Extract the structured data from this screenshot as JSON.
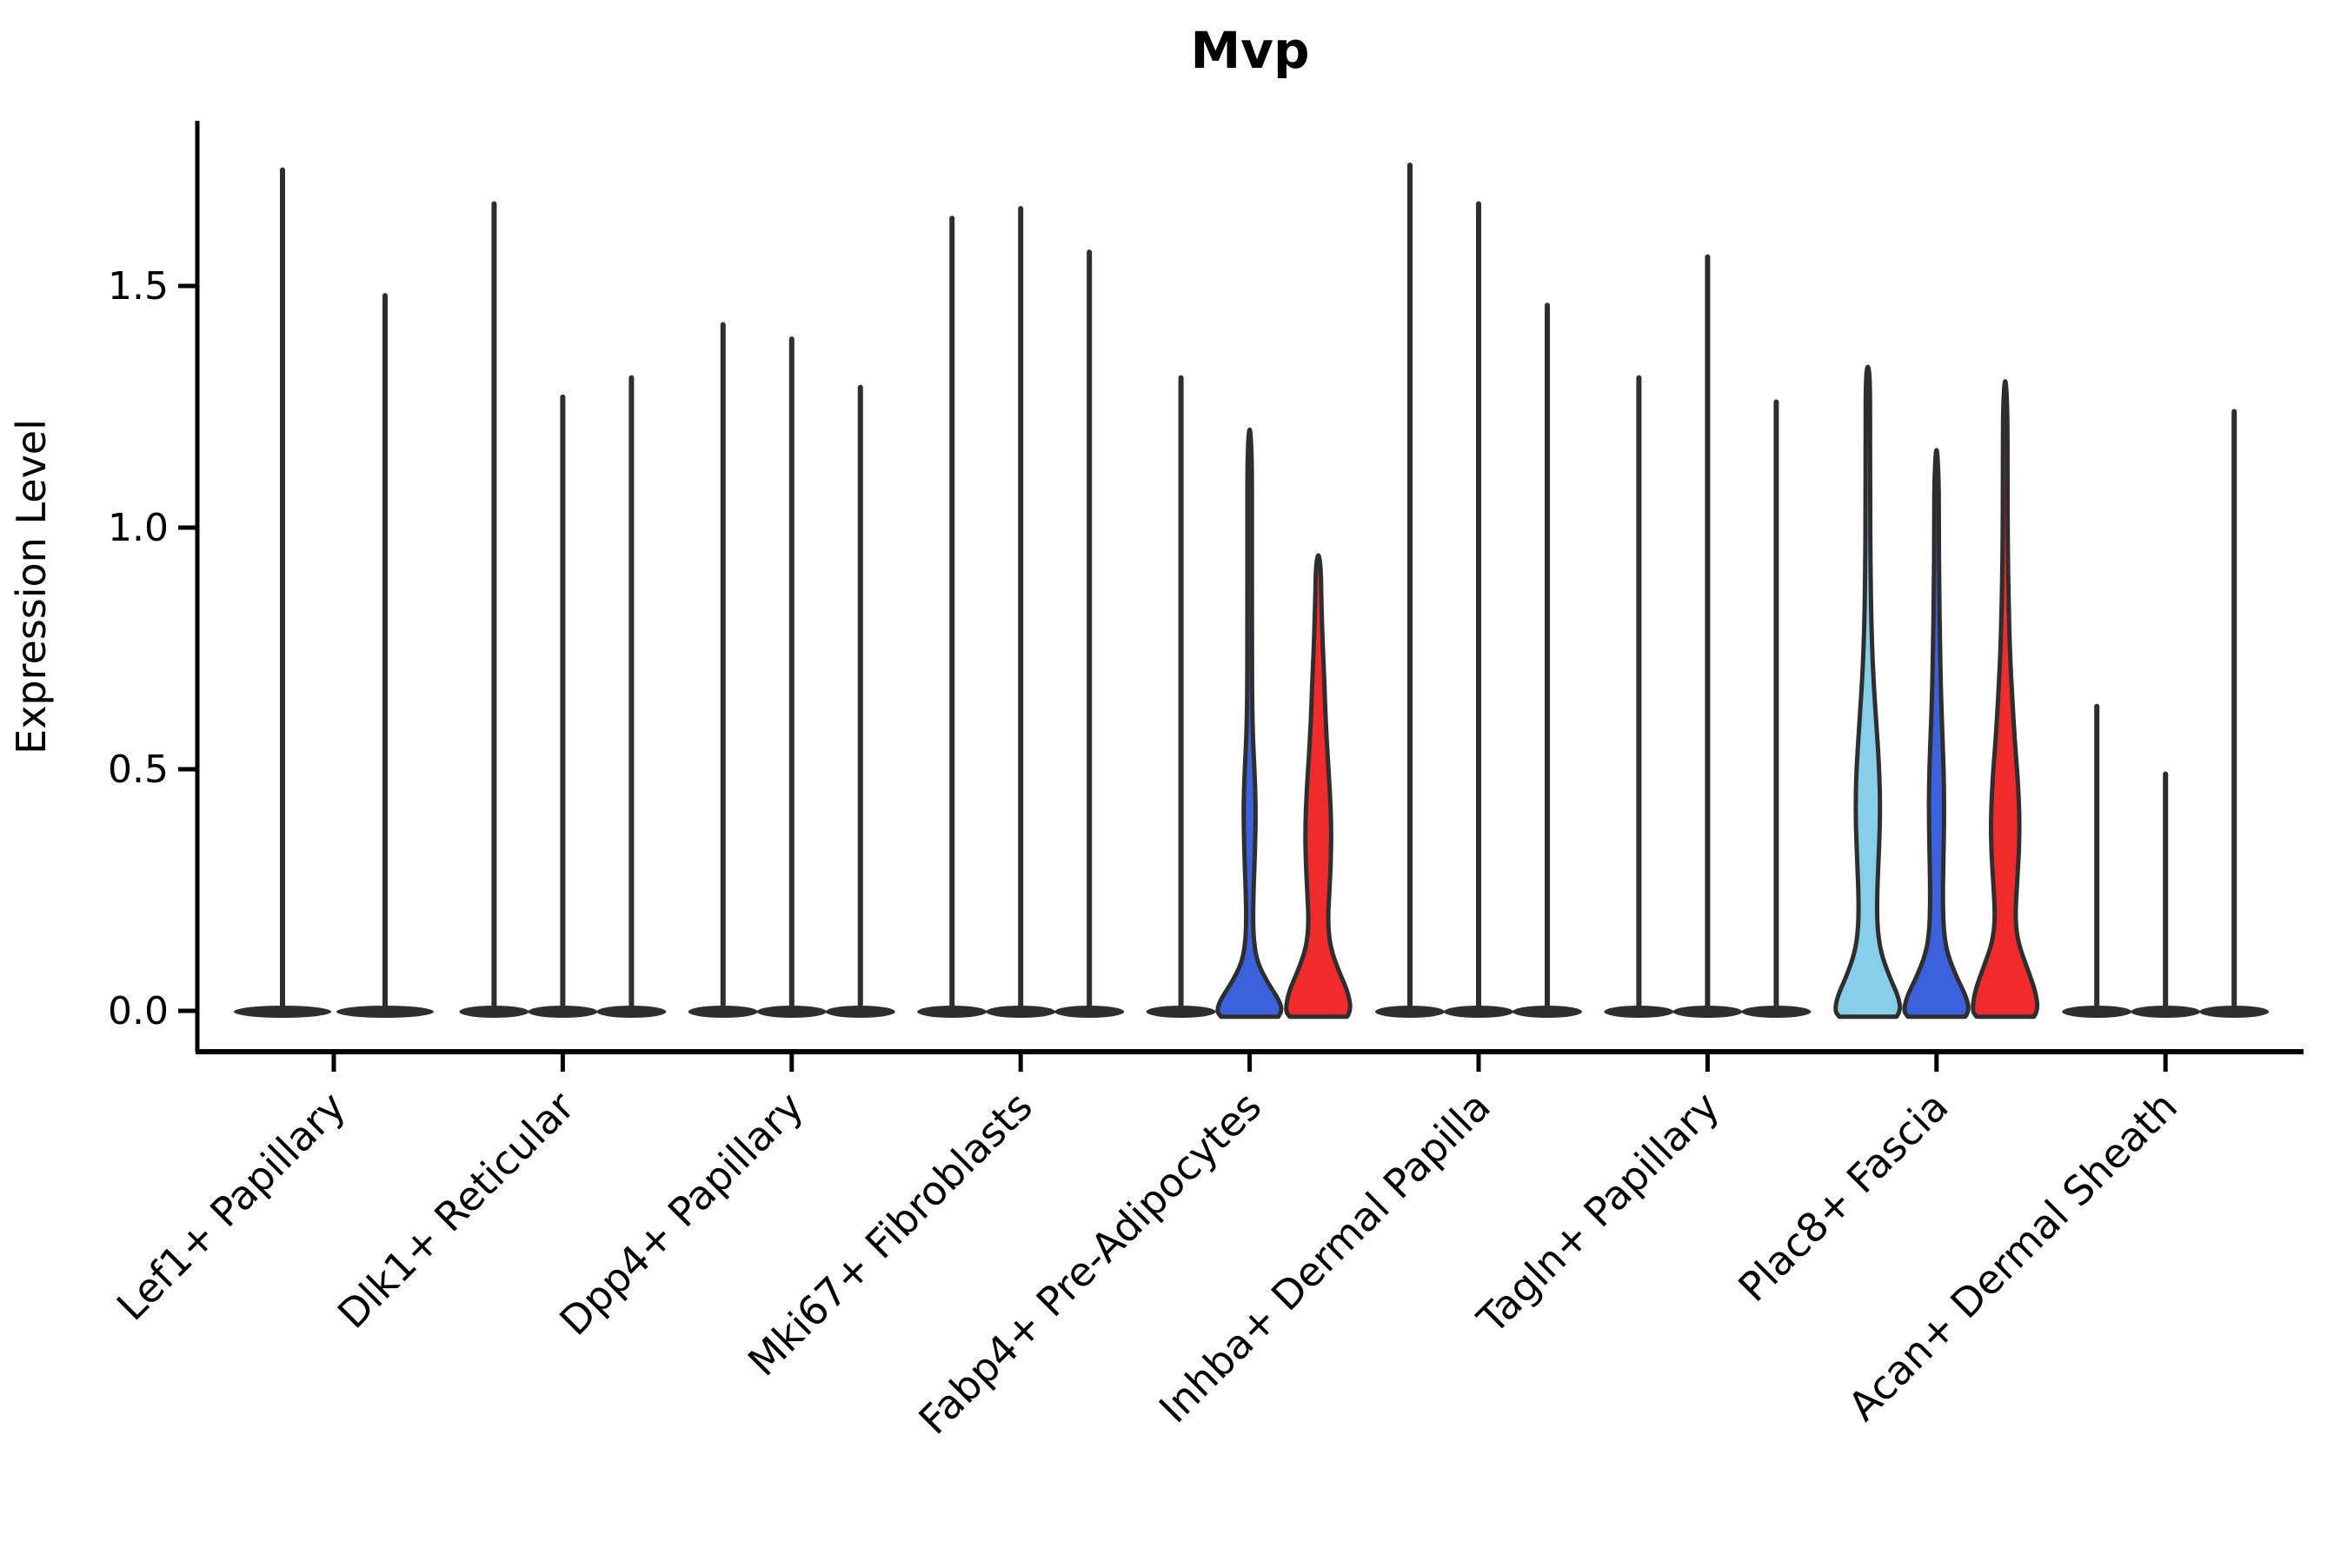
{
  "chart_data": {
    "type": "violin",
    "title": "Mvp",
    "xlabel": "",
    "ylabel": "Expression Level",
    "yticks": [
      0.0,
      0.5,
      1.0,
      1.5
    ],
    "ytick_labels": [
      "0.0",
      "0.5",
      "1.0",
      "1.5"
    ],
    "ylim": [
      -0.085,
      1.84
    ],
    "grid": false,
    "legend_position": "none",
    "palette": {
      "hue1_lightblue": "#87CEEB",
      "hue2_blue": "#3B62DC",
      "hue3_red": "#F12B2B",
      "violin_outline": "#2e2e2e",
      "axis_color": "#000000"
    },
    "categories": [
      "Lef1+ Papillary",
      "Dlk1+ Reticular",
      "Dpp4+ Papillary",
      "Mki67+ Fibroblasts",
      "Fabp4+ Pre-Adipocytes",
      "Inhba+ Dermal Papilla",
      "Tagln+ Papillary",
      "Plac8+ Fascia",
      "Acan+ Dermal Sheath"
    ],
    "groups": [
      {
        "category": "Lef1+ Papillary",
        "offsets": [
          -59,
          59
        ],
        "violins": [
          {
            "max": 1.74,
            "profile": null,
            "color": null
          },
          {
            "max": 1.48,
            "profile": null,
            "color": null
          }
        ]
      },
      {
        "category": "Dlk1+ Reticular",
        "offsets": [
          -79,
          0,
          79
        ],
        "violins": [
          {
            "max": 1.67,
            "profile": null,
            "color": null
          },
          {
            "max": 1.27,
            "profile": null,
            "color": null
          },
          {
            "max": 1.31,
            "profile": null,
            "color": null
          }
        ]
      },
      {
        "category": "Dpp4+ Papillary",
        "offsets": [
          -79,
          0,
          79
        ],
        "violins": [
          {
            "max": 1.42,
            "profile": null,
            "color": null
          },
          {
            "max": 1.39,
            "profile": null,
            "color": null
          },
          {
            "max": 1.29,
            "profile": null,
            "color": null
          }
        ]
      },
      {
        "category": "Mki67+ Fibroblasts",
        "offsets": [
          -79,
          0,
          79
        ],
        "violins": [
          {
            "max": 1.64,
            "profile": null,
            "color": null
          },
          {
            "max": 1.66,
            "profile": null,
            "color": null
          },
          {
            "max": 1.57,
            "profile": null,
            "color": null
          }
        ]
      },
      {
        "category": "Fabp4+ Pre-Adipocytes",
        "offsets": [
          -79,
          0,
          79
        ],
        "violins": [
          {
            "max": 1.31,
            "profile": null,
            "color": null
          },
          {
            "max": 1.22,
            "profile": "fabp4_blue",
            "color": "#3B62DC"
          },
          {
            "max": 0.95,
            "profile": "fabp4_red",
            "color": "#F12B2B"
          }
        ]
      },
      {
        "category": "Inhba+ Dermal Papilla",
        "offsets": [
          -79,
          0,
          79
        ],
        "violins": [
          {
            "max": 1.75,
            "profile": null,
            "color": null
          },
          {
            "max": 1.67,
            "profile": null,
            "color": null
          },
          {
            "max": 1.46,
            "profile": null,
            "color": null
          }
        ]
      },
      {
        "category": "Tagln+ Papillary",
        "offsets": [
          -79,
          0,
          79
        ],
        "violins": [
          {
            "max": 1.31,
            "profile": null,
            "color": null
          },
          {
            "max": 1.56,
            "profile": null,
            "color": null
          },
          {
            "max": 1.26,
            "profile": null,
            "color": null
          }
        ]
      },
      {
        "category": "Plac8+ Fascia",
        "offsets": [
          -79,
          0,
          79
        ],
        "violins": [
          {
            "max": 1.34,
            "profile": "plac8_lightblue",
            "color": "#87CEEB"
          },
          {
            "max": 1.18,
            "profile": "plac8_blue",
            "color": "#3B62DC"
          },
          {
            "max": 1.32,
            "profile": "plac8_red",
            "color": "#F12B2B"
          }
        ]
      },
      {
        "category": "Acan+ Dermal Sheath",
        "offsets": [
          -79,
          0,
          79
        ],
        "violins": [
          {
            "max": 0.63,
            "profile": null,
            "color": null
          },
          {
            "max": 0.49,
            "profile": null,
            "color": null
          },
          {
            "max": 1.24,
            "profile": null,
            "color": null
          }
        ]
      }
    ],
    "profiles": {
      "plac8_lightblue": [
        [
          -0.012,
          33
        ],
        [
          0,
          38
        ],
        [
          0.03,
          35
        ],
        [
          0.07,
          25
        ],
        [
          0.12,
          15
        ],
        [
          0.17,
          11
        ],
        [
          0.23,
          10.5
        ],
        [
          0.3,
          12
        ],
        [
          0.38,
          13.8
        ],
        [
          0.45,
          14
        ],
        [
          0.52,
          12.5
        ],
        [
          0.6,
          9.5
        ],
        [
          0.7,
          6
        ],
        [
          0.8,
          4
        ],
        [
          0.92,
          3
        ],
        [
          1.05,
          2.6
        ],
        [
          1.2,
          2.6
        ],
        [
          1.31,
          2.4
        ],
        [
          1.34,
          0
        ]
      ],
      "plac8_blue": [
        [
          -0.012,
          33
        ],
        [
          0,
          38
        ],
        [
          0.03,
          34
        ],
        [
          0.07,
          23
        ],
        [
          0.12,
          12
        ],
        [
          0.17,
          8
        ],
        [
          0.24,
          7.2
        ],
        [
          0.32,
          8
        ],
        [
          0.4,
          8.8
        ],
        [
          0.48,
          8.5
        ],
        [
          0.56,
          7
        ],
        [
          0.65,
          5.2
        ],
        [
          0.75,
          4
        ],
        [
          0.88,
          3
        ],
        [
          1.0,
          2.6
        ],
        [
          1.1,
          2.6
        ],
        [
          1.18,
          0
        ]
      ],
      "plac8_red": [
        [
          -0.012,
          33
        ],
        [
          0,
          38
        ],
        [
          0.04,
          35
        ],
        [
          0.09,
          25
        ],
        [
          0.14,
          15
        ],
        [
          0.19,
          11.5
        ],
        [
          0.26,
          13.5
        ],
        [
          0.33,
          16
        ],
        [
          0.4,
          16.5
        ],
        [
          0.48,
          14.5
        ],
        [
          0.56,
          11
        ],
        [
          0.65,
          8
        ],
        [
          0.74,
          5.5
        ],
        [
          0.84,
          4
        ],
        [
          0.95,
          3
        ],
        [
          1.1,
          2.6
        ],
        [
          1.25,
          2.6
        ],
        [
          1.32,
          0
        ]
      ],
      "fabp4_blue": [
        [
          -0.012,
          33
        ],
        [
          0,
          38
        ],
        [
          0.025,
          33
        ],
        [
          0.06,
          20
        ],
        [
          0.1,
          9
        ],
        [
          0.14,
          5
        ],
        [
          0.19,
          3.8
        ],
        [
          0.25,
          4.5
        ],
        [
          0.32,
          6
        ],
        [
          0.4,
          7
        ],
        [
          0.46,
          6.5
        ],
        [
          0.52,
          5
        ],
        [
          0.58,
          3.5
        ],
        [
          0.65,
          2.8
        ],
        [
          0.8,
          2.6
        ],
        [
          1.0,
          2.6
        ],
        [
          1.15,
          2.6
        ],
        [
          1.22,
          0
        ]
      ],
      "fabp4_red": [
        [
          -0.012,
          33
        ],
        [
          0,
          38
        ],
        [
          0.04,
          34
        ],
        [
          0.08,
          24
        ],
        [
          0.13,
          14
        ],
        [
          0.18,
          11
        ],
        [
          0.24,
          12.5
        ],
        [
          0.31,
          14.5
        ],
        [
          0.38,
          15
        ],
        [
          0.45,
          13.5
        ],
        [
          0.52,
          11
        ],
        [
          0.6,
          8.5
        ],
        [
          0.68,
          7
        ],
        [
          0.76,
          5
        ],
        [
          0.85,
          3.5
        ],
        [
          0.92,
          2.8
        ],
        [
          0.95,
          0
        ]
      ]
    }
  }
}
